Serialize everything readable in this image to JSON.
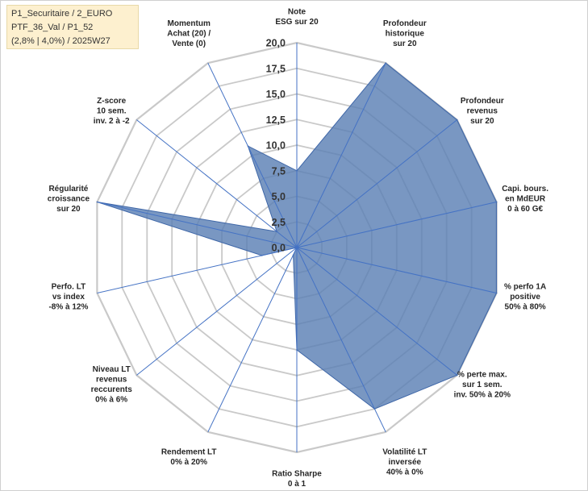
{
  "info_box": {
    "line1": "P1_Securitaire / 2_EURO",
    "line2": "PTF_36_Val / P1_52",
    "line3": "(2,8% | 4,0%) / 2025W27"
  },
  "colors": {
    "fill": "#5b80b4",
    "stroke": "#3f67a8",
    "grid": "#c9c9c9",
    "spoke": "#4472c4",
    "info_bg": "#fdf0cf"
  },
  "chart_data": {
    "type": "radar",
    "rmin": 0,
    "rmax": 20,
    "ticks": [
      "0,0",
      "2,5",
      "5,0",
      "7,5",
      "10,0",
      "12,5",
      "15,0",
      "17,5",
      "20,0"
    ],
    "tick_values": [
      0,
      2.5,
      5,
      7.5,
      10,
      12.5,
      15,
      17.5,
      20
    ],
    "grid": true,
    "axes": [
      {
        "lines": [
          "Note",
          "ESG sur 20"
        ],
        "value": 7.5
      },
      {
        "lines": [
          "Profondeur",
          "historique",
          "sur 20"
        ],
        "value": 20
      },
      {
        "lines": [
          "Profondeur",
          "revenus",
          "sur 20"
        ],
        "value": 20
      },
      {
        "lines": [
          "Capi. bours.",
          "en MdEUR",
          "0 à 60 G€"
        ],
        "value": 20
      },
      {
        "lines": [
          "% perfo 1A",
          "positive",
          "50% à 80%"
        ],
        "value": 20
      },
      {
        "lines": [
          "% perte max.",
          "sur 1 sem.",
          "inv. 50% à 20%"
        ],
        "value": 20
      },
      {
        "lines": [
          "Volatilité LT",
          "inversée",
          "40% à 0%"
        ],
        "value": 17.5
      },
      {
        "lines": [
          "Ratio Sharpe",
          "0 à 1"
        ],
        "value": 10
      },
      {
        "lines": [
          "Rendement LT",
          "0% à 20%"
        ],
        "value": 0.8
      },
      {
        "lines": [
          "Niveau LT",
          "revenus",
          "reccurents",
          "0% à 6%"
        ],
        "value": 0
      },
      {
        "lines": [
          "Perfo. LT",
          "vs index",
          "-8% à 12%"
        ],
        "value": 3.5
      },
      {
        "lines": [
          "Régularité",
          "croissance",
          "sur 20"
        ],
        "value": 20
      },
      {
        "lines": [
          "Z-score",
          "10 sem.",
          "inv. 2 à -2"
        ],
        "value": 2.5
      },
      {
        "lines": [
          "Momentum",
          "Achat (20) /",
          "Vente (0)"
        ],
        "value": 11
      }
    ]
  }
}
